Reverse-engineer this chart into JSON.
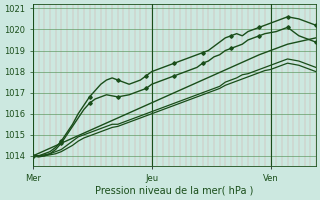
{
  "xlabel": "Pression niveau de la mer( hPa )",
  "background_color": "#cce8e0",
  "plot_bg_color": "#cce8e0",
  "grid_color_h": "#4a8a4a",
  "grid_color_v": "#d4a0a0",
  "line_color": "#1a4e1a",
  "ylim": [
    1013.5,
    1021.2
  ],
  "yticks": [
    1014,
    1015,
    1016,
    1017,
    1018,
    1019,
    1020,
    1021
  ],
  "day_labels": [
    "Mer",
    "Jeu",
    "Ven"
  ],
  "day_positions": [
    0,
    0.42,
    0.84
  ],
  "total_steps": 100,
  "series": [
    {
      "x": [
        0.0,
        0.02,
        0.04,
        0.06,
        0.08,
        0.1,
        0.12,
        0.14,
        0.16,
        0.18,
        0.2,
        0.22,
        0.24,
        0.26,
        0.28,
        0.3,
        0.32,
        0.34,
        0.36,
        0.38,
        0.4,
        0.42,
        0.44,
        0.46,
        0.48,
        0.5,
        0.52,
        0.54,
        0.56,
        0.58,
        0.6,
        0.62,
        0.64,
        0.66,
        0.68,
        0.7,
        0.72,
        0.74,
        0.76,
        0.78,
        0.8,
        0.82,
        0.84,
        0.86,
        0.88,
        0.9,
        0.92,
        0.94,
        0.96,
        0.98,
        1.0
      ],
      "y": [
        1014.0,
        1014.0,
        1014.1,
        1014.2,
        1014.4,
        1014.7,
        1015.1,
        1015.5,
        1016.0,
        1016.4,
        1016.8,
        1017.1,
        1017.4,
        1017.6,
        1017.7,
        1017.6,
        1017.5,
        1017.4,
        1017.5,
        1017.6,
        1017.8,
        1018.0,
        1018.1,
        1018.2,
        1018.3,
        1018.4,
        1018.5,
        1018.6,
        1018.7,
        1018.8,
        1018.9,
        1019.0,
        1019.2,
        1019.4,
        1019.6,
        1019.7,
        1019.8,
        1019.7,
        1019.9,
        1020.0,
        1020.1,
        1020.2,
        1020.3,
        1020.4,
        1020.5,
        1020.6,
        1020.55,
        1020.5,
        1020.4,
        1020.3,
        1020.2
      ],
      "marker": true,
      "linestyle": "-",
      "lw": 1.0
    },
    {
      "x": [
        0.0,
        0.02,
        0.04,
        0.06,
        0.08,
        0.1,
        0.12,
        0.14,
        0.16,
        0.18,
        0.2,
        0.22,
        0.24,
        0.26,
        0.28,
        0.3,
        0.32,
        0.34,
        0.36,
        0.38,
        0.4,
        0.42,
        0.44,
        0.46,
        0.48,
        0.5,
        0.52,
        0.54,
        0.56,
        0.58,
        0.6,
        0.62,
        0.64,
        0.66,
        0.68,
        0.7,
        0.72,
        0.74,
        0.76,
        0.78,
        0.8,
        0.82,
        0.84,
        0.86,
        0.88,
        0.9,
        0.92,
        0.94,
        0.96,
        0.98,
        1.0
      ],
      "y": [
        1014.0,
        1013.95,
        1014.0,
        1014.1,
        1014.3,
        1014.6,
        1015.0,
        1015.4,
        1015.8,
        1016.2,
        1016.5,
        1016.7,
        1016.8,
        1016.9,
        1016.85,
        1016.8,
        1016.85,
        1016.9,
        1017.0,
        1017.1,
        1017.2,
        1017.4,
        1017.5,
        1017.6,
        1017.7,
        1017.8,
        1017.9,
        1018.0,
        1018.1,
        1018.2,
        1018.4,
        1018.5,
        1018.7,
        1018.8,
        1019.0,
        1019.1,
        1019.2,
        1019.3,
        1019.5,
        1019.6,
        1019.7,
        1019.8,
        1019.85,
        1019.9,
        1020.0,
        1020.1,
        1019.9,
        1019.7,
        1019.6,
        1019.5,
        1019.4
      ],
      "marker": true,
      "linestyle": "-",
      "lw": 1.0
    },
    {
      "x": [
        0.0,
        0.1,
        0.2,
        0.3,
        0.4,
        0.5,
        0.6,
        0.7,
        0.8,
        0.9,
        1.0
      ],
      "y": [
        1014.0,
        1014.6,
        1015.2,
        1015.8,
        1016.4,
        1017.0,
        1017.6,
        1018.2,
        1018.8,
        1019.3,
        1019.6
      ],
      "marker": false,
      "linestyle": "-",
      "lw": 1.0
    },
    {
      "x": [
        0.0,
        0.02,
        0.04,
        0.06,
        0.08,
        0.1,
        0.12,
        0.14,
        0.16,
        0.18,
        0.2,
        0.22,
        0.24,
        0.26,
        0.28,
        0.3,
        0.32,
        0.34,
        0.36,
        0.38,
        0.4,
        0.42,
        0.44,
        0.46,
        0.48,
        0.5,
        0.52,
        0.54,
        0.56,
        0.58,
        0.6,
        0.62,
        0.64,
        0.66,
        0.68,
        0.7,
        0.72,
        0.74,
        0.76,
        0.78,
        0.8,
        0.82,
        0.84,
        0.86,
        0.88,
        0.9,
        0.92,
        0.94,
        0.96,
        0.98,
        1.0
      ],
      "y": [
        1014.0,
        1014.0,
        1014.05,
        1014.1,
        1014.2,
        1014.3,
        1014.5,
        1014.7,
        1014.9,
        1015.0,
        1015.1,
        1015.2,
        1015.3,
        1015.4,
        1015.5,
        1015.5,
        1015.6,
        1015.7,
        1015.8,
        1015.9,
        1016.0,
        1016.1,
        1016.2,
        1016.3,
        1016.4,
        1016.5,
        1016.6,
        1016.7,
        1016.8,
        1016.9,
        1017.0,
        1017.1,
        1017.2,
        1017.3,
        1017.5,
        1017.6,
        1017.7,
        1017.85,
        1017.9,
        1018.0,
        1018.1,
        1018.2,
        1018.3,
        1018.4,
        1018.5,
        1018.6,
        1018.55,
        1018.5,
        1018.4,
        1018.3,
        1018.2
      ],
      "marker": false,
      "linestyle": "-",
      "lw": 0.9
    },
    {
      "x": [
        0.0,
        0.02,
        0.04,
        0.06,
        0.08,
        0.1,
        0.12,
        0.14,
        0.16,
        0.18,
        0.2,
        0.22,
        0.24,
        0.26,
        0.28,
        0.3,
        0.32,
        0.34,
        0.36,
        0.38,
        0.4,
        0.42,
        0.44,
        0.46,
        0.48,
        0.5,
        0.52,
        0.54,
        0.56,
        0.58,
        0.6,
        0.62,
        0.64,
        0.66,
        0.68,
        0.7,
        0.72,
        0.74,
        0.76,
        0.78,
        0.8,
        0.82,
        0.84,
        0.86,
        0.88,
        0.9,
        0.92,
        0.94,
        0.96,
        0.98,
        1.0
      ],
      "y": [
        1014.0,
        1014.0,
        1014.0,
        1014.05,
        1014.1,
        1014.2,
        1014.35,
        1014.5,
        1014.7,
        1014.85,
        1014.95,
        1015.05,
        1015.15,
        1015.25,
        1015.35,
        1015.4,
        1015.5,
        1015.6,
        1015.7,
        1015.8,
        1015.9,
        1016.0,
        1016.1,
        1016.2,
        1016.3,
        1016.4,
        1016.5,
        1016.6,
        1016.7,
        1016.8,
        1016.9,
        1017.0,
        1017.1,
        1017.2,
        1017.35,
        1017.45,
        1017.55,
        1017.65,
        1017.75,
        1017.85,
        1017.95,
        1018.05,
        1018.1,
        1018.2,
        1018.3,
        1018.4,
        1018.35,
        1018.3,
        1018.2,
        1018.1,
        1018.0
      ],
      "marker": false,
      "linestyle": "-",
      "lw": 0.9
    }
  ],
  "marker_step": 5,
  "vlines": [
    0.0,
    0.42,
    0.84
  ],
  "xlabel_fontsize": 7,
  "tick_fontsize": 6
}
